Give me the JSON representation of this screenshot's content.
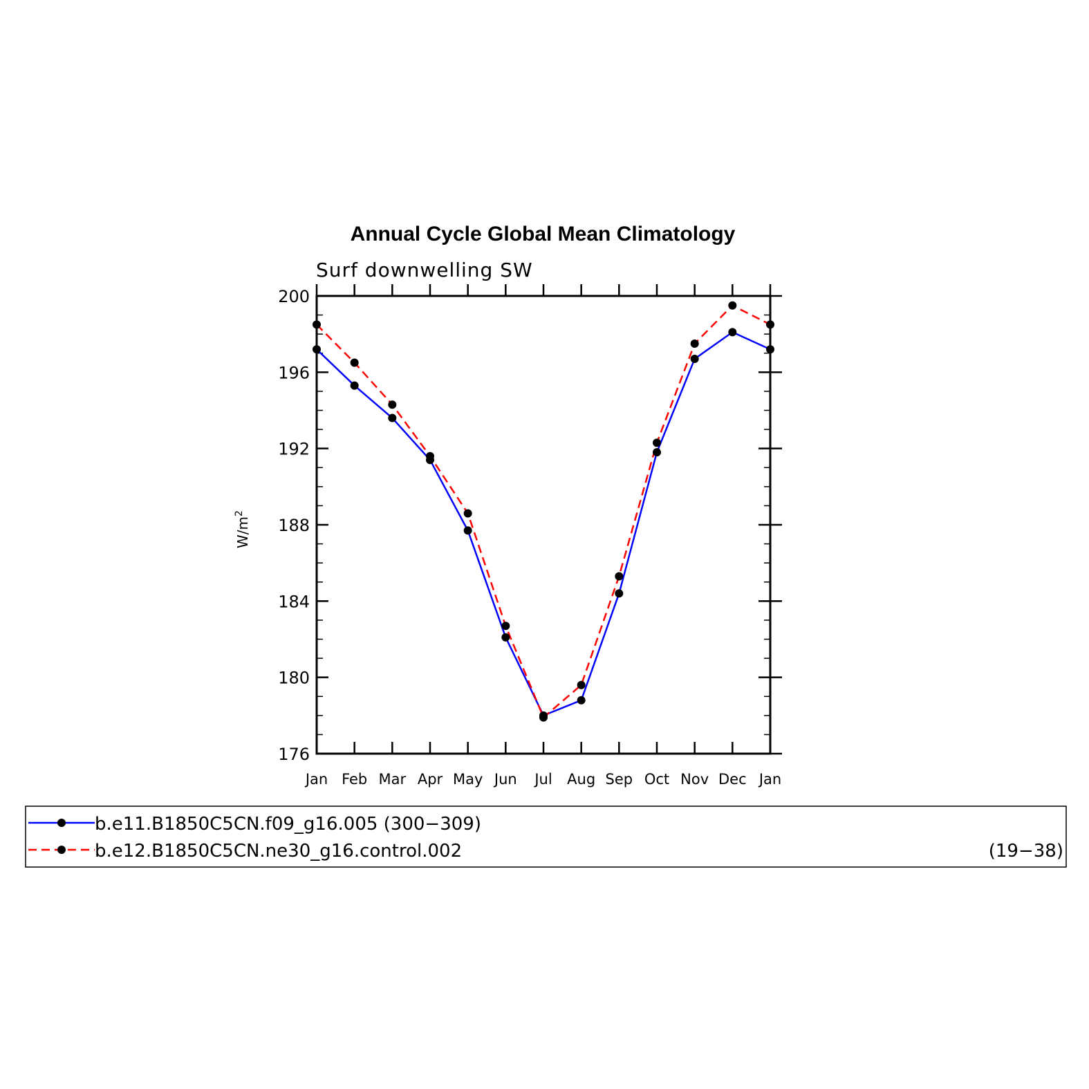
{
  "colors": {
    "series1": "#0000ff",
    "series2": "#ff0000",
    "marker": "#000000"
  },
  "chart_data": {
    "type": "line",
    "title": "Annual Cycle Global Mean Climatology",
    "subtitle": "Surf downwelling SW",
    "ylabel_base": "W/m",
    "ylabel_sup": "2",
    "xlabel": "",
    "categories": [
      "Jan",
      "Feb",
      "Mar",
      "Apr",
      "May",
      "Jun",
      "Jul",
      "Aug",
      "Sep",
      "Oct",
      "Nov",
      "Dec",
      "Jan"
    ],
    "ylim": [
      176,
      200
    ],
    "yticks": [
      176,
      180,
      184,
      188,
      192,
      196,
      200
    ],
    "ytick_labels": [
      "176",
      "180",
      "184",
      "188",
      "192",
      "196",
      "200"
    ],
    "series": [
      {
        "name": "b.e11.B1850C5CN.f09_g16.005 (300−309)",
        "period": "",
        "style": "solid",
        "values": [
          197.2,
          195.3,
          193.6,
          191.4,
          187.7,
          182.1,
          178.0,
          178.8,
          184.4,
          191.8,
          196.7,
          198.1,
          197.2
        ]
      },
      {
        "name": "b.e12.B1850C5CN.ne30_g16.control.002",
        "period": "(19−38)",
        "style": "dashed",
        "values": [
          198.5,
          196.5,
          194.3,
          191.6,
          188.6,
          182.7,
          177.9,
          179.6,
          185.3,
          192.3,
          197.5,
          199.5,
          198.5
        ]
      }
    ]
  }
}
